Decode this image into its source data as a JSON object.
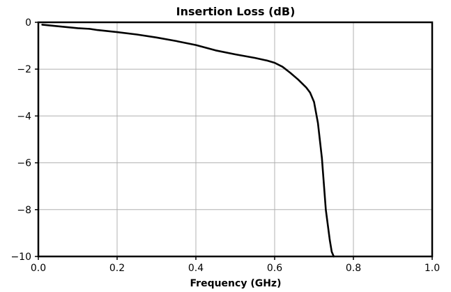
{
  "chart_data": {
    "type": "line",
    "title": "Insertion Loss (dB)",
    "xlabel": "Frequency (GHz)",
    "ylabel": "",
    "xlim": [
      0.0,
      1.0
    ],
    "ylim": [
      -10,
      0
    ],
    "grid": true,
    "x_ticks": [
      0.0,
      0.2,
      0.4,
      0.6,
      0.8,
      1.0
    ],
    "x_tick_labels": [
      "0.0",
      "0.2",
      "0.4",
      "0.6",
      "0.8",
      "1.0"
    ],
    "y_ticks": [
      0,
      -2,
      -4,
      -6,
      -8,
      -10
    ],
    "y_tick_labels": [
      "0",
      "−2",
      "−4",
      "−6",
      "−8",
      "−10"
    ],
    "series": [
      {
        "color": "#000000",
        "x": [
          0.01,
          0.05,
          0.1,
          0.13,
          0.15,
          0.2,
          0.25,
          0.3,
          0.35,
          0.4,
          0.45,
          0.5,
          0.55,
          0.58,
          0.6,
          0.62,
          0.64,
          0.66,
          0.68,
          0.69,
          0.7,
          0.71,
          0.72,
          0.73,
          0.74,
          0.745,
          0.75
        ],
        "y": [
          -0.1,
          -0.17,
          -0.25,
          -0.28,
          -0.33,
          -0.42,
          -0.52,
          -0.65,
          -0.8,
          -0.97,
          -1.2,
          -1.37,
          -1.52,
          -1.63,
          -1.73,
          -1.9,
          -2.16,
          -2.45,
          -2.78,
          -3.0,
          -3.4,
          -4.3,
          -5.8,
          -8.0,
          -9.3,
          -9.8,
          -10.0
        ]
      }
    ]
  }
}
